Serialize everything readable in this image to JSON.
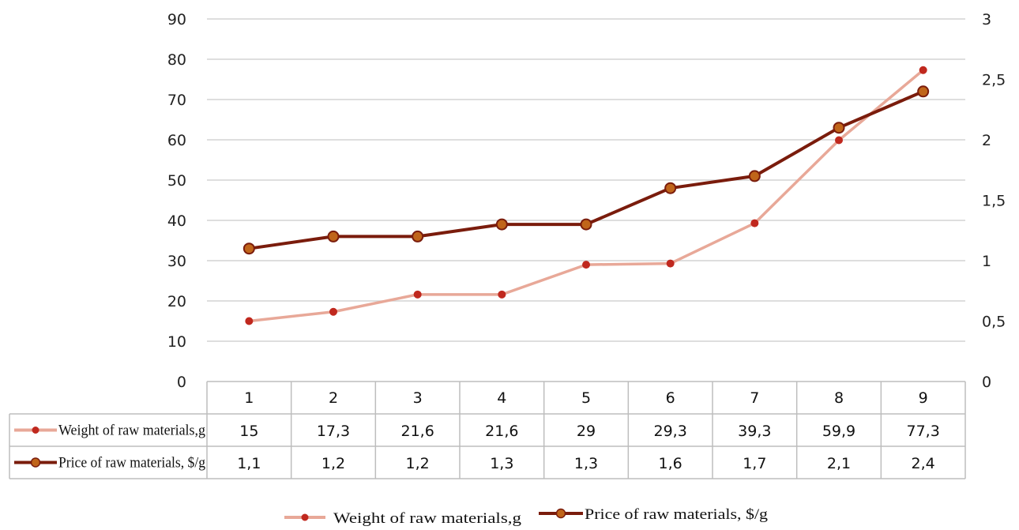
{
  "chart_data": {
    "type": "line",
    "categories": [
      "1",
      "2",
      "3",
      "4",
      "5",
      "6",
      "7",
      "8",
      "9"
    ],
    "y_left": {
      "ticks": [
        "0",
        "10",
        "20",
        "30",
        "40",
        "50",
        "60",
        "70",
        "80",
        "90"
      ],
      "range": [
        0,
        90
      ]
    },
    "y_right": {
      "ticks": [
        "0",
        "0,5",
        "1",
        "1,5",
        "2",
        "2,5",
        "3"
      ],
      "range": [
        0,
        3
      ]
    },
    "grid": true,
    "legend_position": "bottom",
    "series": [
      {
        "name": "Weight of raw materials,g",
        "axis": "left",
        "color": "#e8a898",
        "marker_color": "#c0281e",
        "values": [
          15,
          17.3,
          21.6,
          21.6,
          29,
          29.3,
          39.3,
          59.9,
          77.3
        ],
        "labels": [
          "15",
          "17,3",
          "21,6",
          "21,6",
          "29",
          "29,3",
          "39,3",
          "59,9",
          "77,3"
        ]
      },
      {
        "name": "Price of raw materials, $/g",
        "axis": "right",
        "color": "#7a1c0c",
        "marker_color": "#c0651a",
        "values": [
          1.1,
          1.2,
          1.2,
          1.3,
          1.3,
          1.6,
          1.7,
          2.1,
          2.4
        ],
        "labels": [
          "1,1",
          "1,2",
          "1,2",
          "1,3",
          "1,3",
          "1,6",
          "1,7",
          "2,1",
          "2,4"
        ]
      }
    ]
  }
}
